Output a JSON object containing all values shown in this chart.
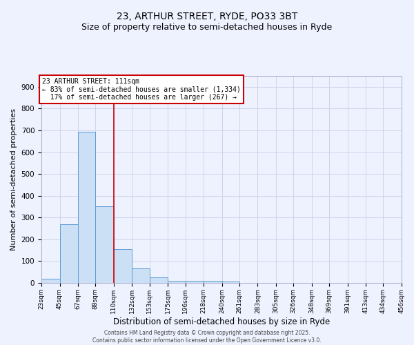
{
  "title": "23, ARTHUR STREET, RYDE, PO33 3BT",
  "subtitle": "Size of property relative to semi-detached houses in Ryde",
  "xlabel": "Distribution of semi-detached houses by size in Ryde",
  "ylabel": "Number of semi-detached properties",
  "bar_edges": [
    23,
    45,
    67,
    88,
    110,
    132,
    153,
    175,
    196,
    218,
    240,
    261,
    283,
    305,
    326,
    348,
    369,
    391,
    413,
    434,
    456
  ],
  "bar_heights": [
    20,
    270,
    695,
    350,
    155,
    65,
    25,
    10,
    10,
    8,
    5,
    0,
    0,
    0,
    0,
    0,
    0,
    0,
    0,
    0
  ],
  "bar_color": "#cce0f5",
  "bar_edge_color": "#5b9bd5",
  "property_line_x": 110,
  "property_line_color": "#cc0000",
  "ylim": [
    0,
    950
  ],
  "annotation_text": "23 ARTHUR STREET: 111sqm\n← 83% of semi-detached houses are smaller (1,334)\n  17% of semi-detached houses are larger (267) →",
  "annotation_box_color": "#cc0000",
  "background_color": "#eef2ff",
  "grid_color": "#c8d0e8",
  "title_fontsize": 10,
  "subtitle_fontsize": 9,
  "tick_label_fontsize": 6.5,
  "ylabel_fontsize": 8,
  "xlabel_fontsize": 8.5,
  "footer_text": "Contains HM Land Registry data © Crown copyright and database right 2025.\nContains public sector information licensed under the Open Government Licence v3.0.",
  "footer_fontsize": 5.5
}
